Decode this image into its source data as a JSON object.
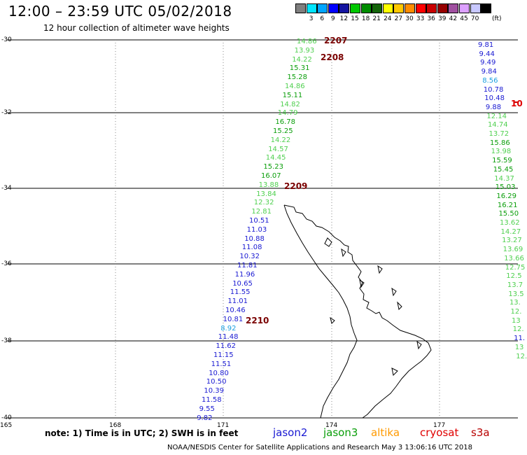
{
  "header": {
    "title": "12:00 – 23:59 UTC 05/02/2018",
    "subtitle": "12 hour collection of altimeter wave heights"
  },
  "legend": {
    "unit": "(ft)",
    "colors": [
      "#7f7f7f",
      "#00e5ff",
      "#00a5ff",
      "#0000ff",
      "#1414a0",
      "#00c800",
      "#008c00",
      "#14640a",
      "#ffff00",
      "#ffc800",
      "#ff8c00",
      "#ff0000",
      "#c80000",
      "#960000",
      "#a050a0",
      "#dca0ff",
      "#c8c8ff",
      "#000000"
    ],
    "labels": [
      "3",
      "6",
      "9",
      "12",
      "15",
      "18",
      "21",
      "24",
      "27",
      "30",
      "33",
      "36",
      "39",
      "42",
      "45",
      "70"
    ]
  },
  "axes": {
    "lat_labels": [
      "-30",
      "-32",
      "-34",
      "-36",
      "-38",
      "-40"
    ],
    "lon_labels": [
      "165",
      "168",
      "171",
      "174",
      "177"
    ]
  },
  "track_labels": [
    "2207",
    "2208",
    "2209",
    "2210"
  ],
  "track_a": [
    "14.86",
    "13.93",
    "14.22",
    "15.31",
    "15.28",
    "14.86",
    "15.11",
    "14.82",
    "14.79",
    "16.78",
    "15.25",
    "14.22",
    "14.57",
    "14.45",
    "15.23",
    "16.07",
    "13.88",
    "13.84",
    "12.32",
    "12.81",
    "10.51",
    "11.03",
    "10.88",
    "11.08",
    "10.32",
    "11.81",
    "11.96",
    "10.65",
    "11.55",
    "11.01",
    "10.46",
    "10.81",
    "8.92",
    "11.48",
    "11.62",
    "11.15",
    "11.51",
    "10.80",
    "10.50",
    "10.39",
    "11.58",
    "9.55",
    "9.82"
  ],
  "track_b": [
    "9.81",
    "9.44",
    "9.49",
    "9.84",
    "8.56",
    "10.78",
    "10.48",
    "9.88",
    "12.14",
    "14.74",
    "13.72",
    "15.86",
    "13.98",
    "15.59",
    "15.45",
    "14.37",
    "15.03",
    "16.29",
    "16.21",
    "15.50",
    "13.62",
    "14.27",
    "13.27",
    "13.69",
    "13.66",
    "12.75",
    "12.5",
    "13.7",
    "13.5",
    "13.",
    "12.",
    "13",
    "12.",
    "11.",
    "13",
    "12."
  ],
  "right_edge_label": "10",
  "footer": {
    "note": "note: 1) Time is in UTC; 2) SWH is in feet",
    "satellites": [
      "jason2",
      "jason3",
      "altika",
      "cryosat",
      "s3a"
    ],
    "sat_colors": [
      "#1a1ad2",
      "#0a9e0a",
      "#ff9a00",
      "#e00000",
      "#b80000"
    ],
    "credit": "NOAA/NESDIS Center for Satellite Applications and Research     May  3 13:06:16 UTC 2018"
  }
}
